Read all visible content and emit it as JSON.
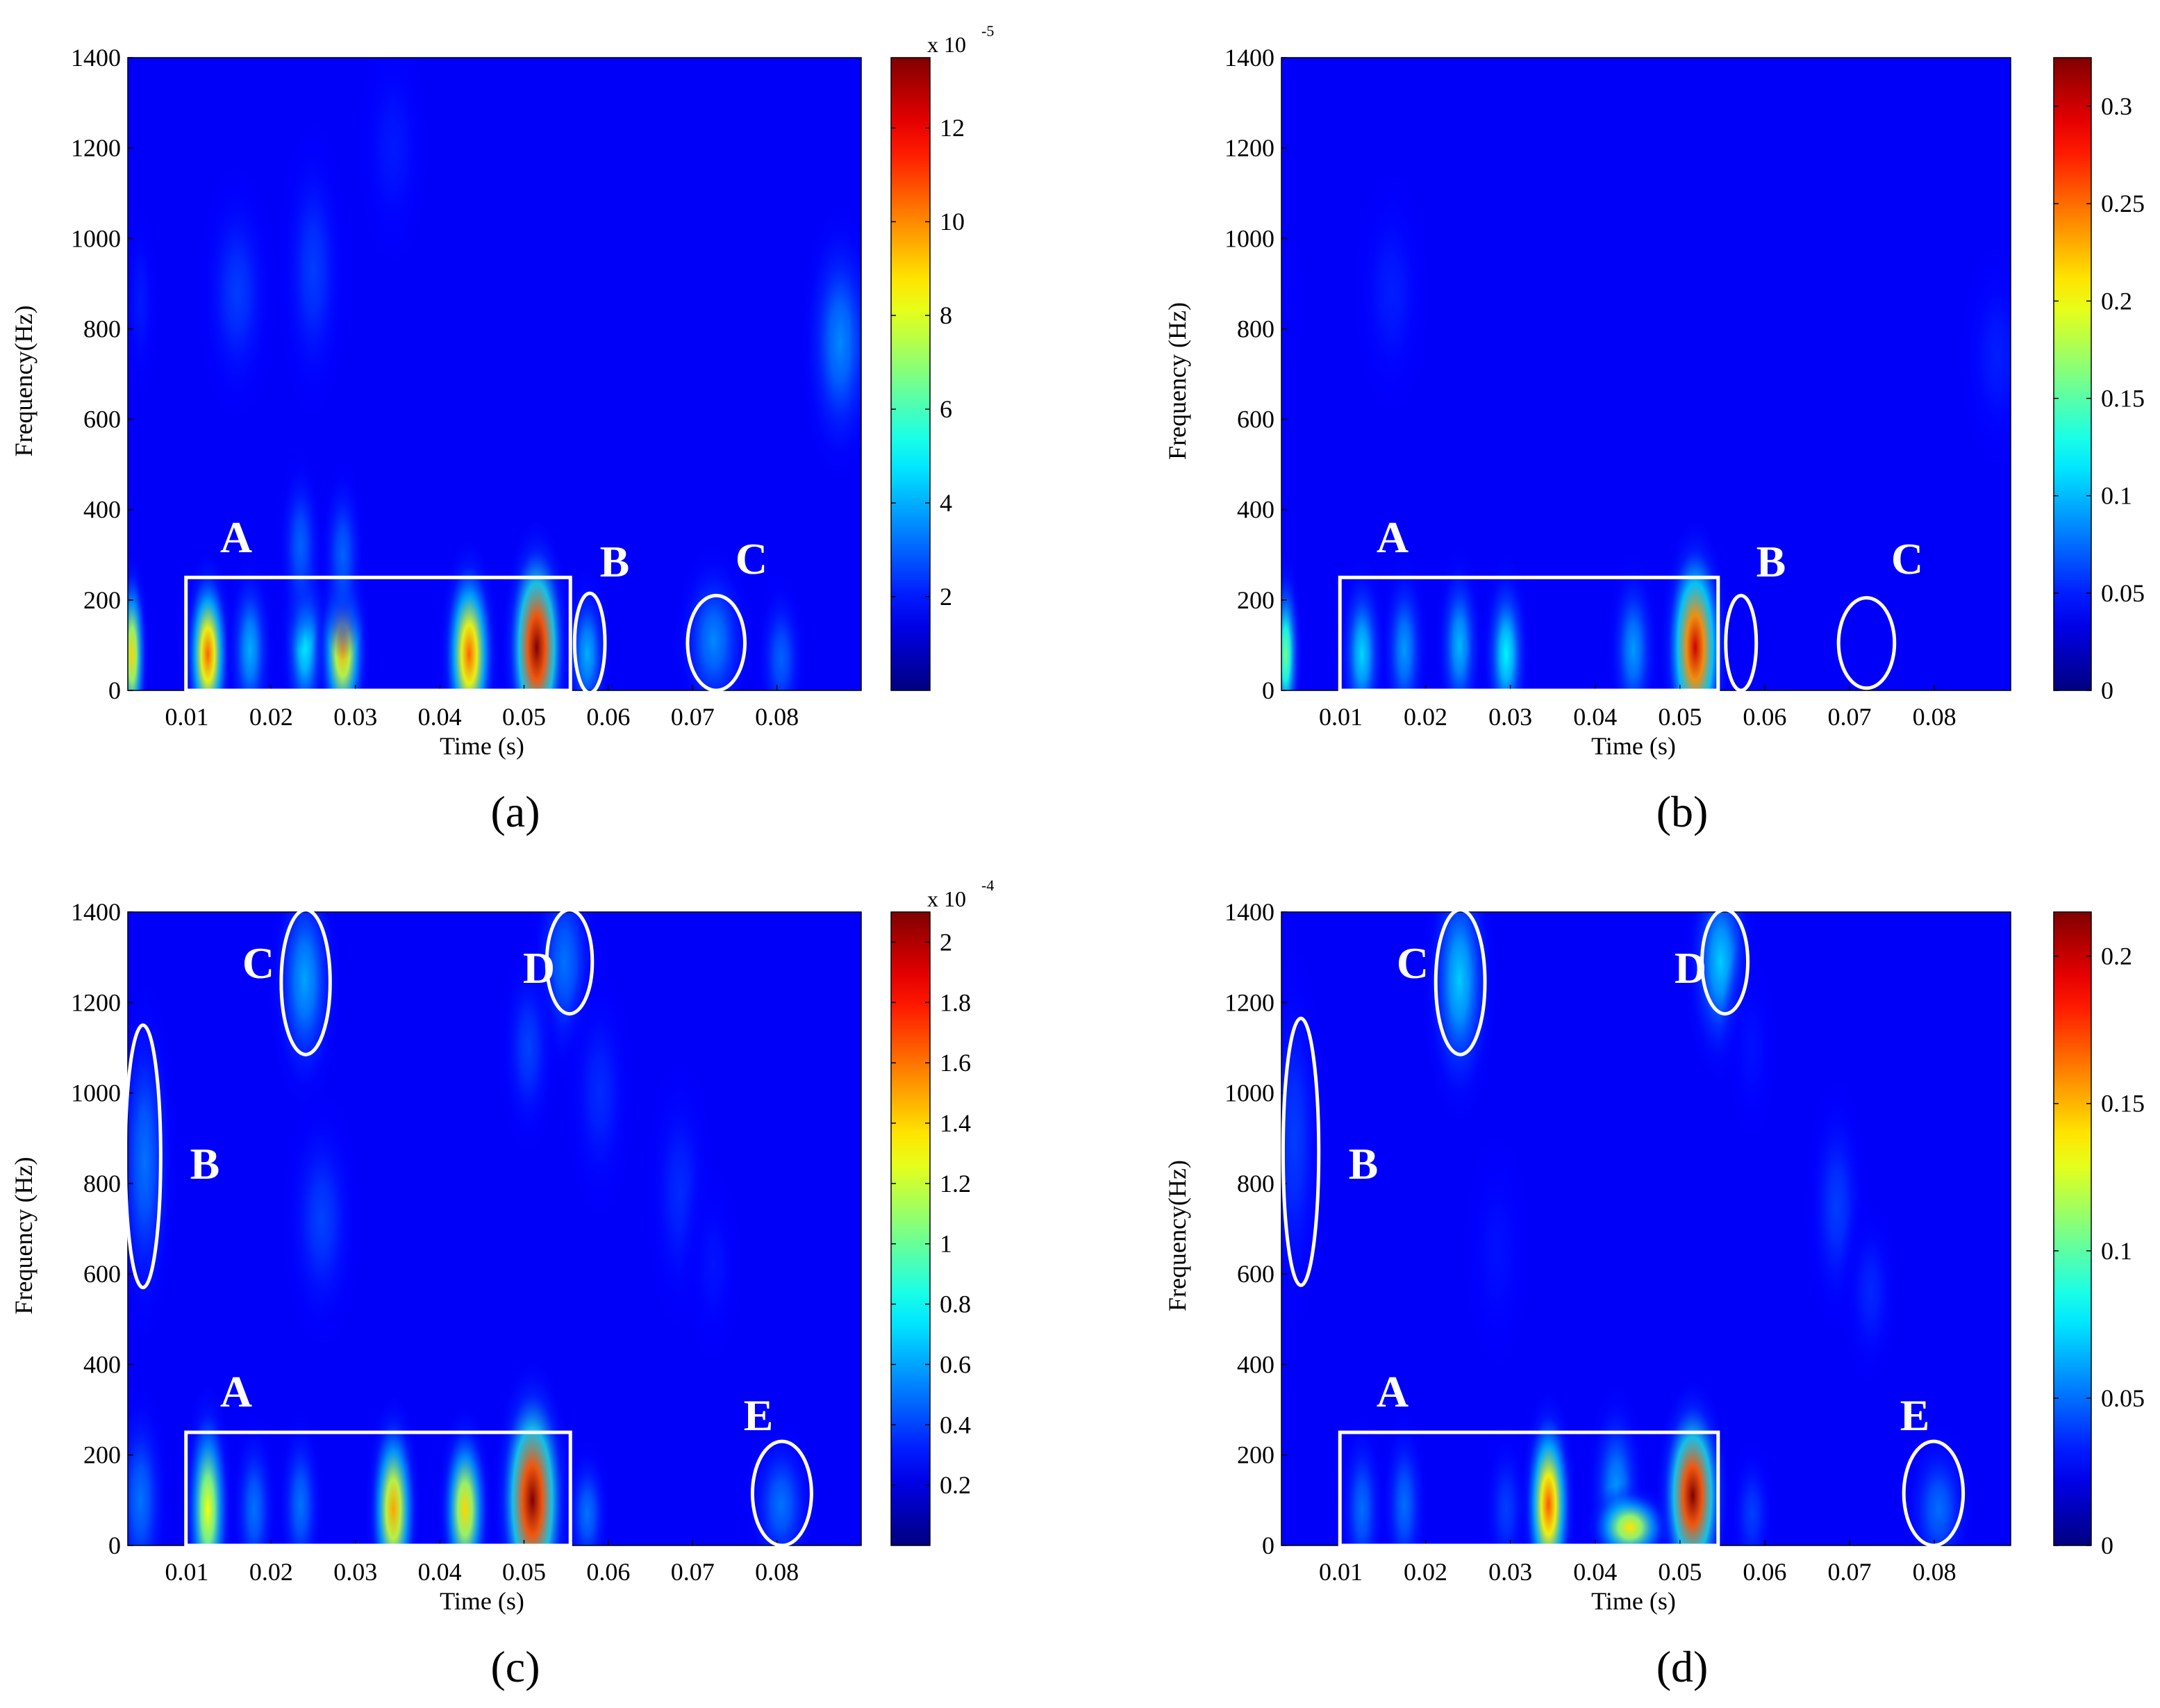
{
  "panels": [
    {
      "caption": "(a)",
      "xlabel": "Time (s)",
      "ylabel": "Frequency(Hz)",
      "xticks": [
        "0.01",
        "0.02",
        "0.03",
        "0.04",
        "0.05",
        "0.06",
        "0.07",
        "0.08"
      ],
      "yticks": [
        "0",
        "200",
        "400",
        "600",
        "800",
        "1000",
        "1200",
        "1400"
      ],
      "colorbar": {
        "multiplier": "x 10",
        "exponent": "-5",
        "ticks": [
          "2",
          "4",
          "6",
          "8",
          "10",
          "12"
        ]
      },
      "markers": [
        "A",
        "B",
        "C"
      ]
    },
    {
      "caption": "(b)",
      "xlabel": "Time (s)",
      "ylabel": "Frequency (Hz)",
      "xticks": [
        "0.01",
        "0.02",
        "0.03",
        "0.04",
        "0.05",
        "0.06",
        "0.07",
        "0.08"
      ],
      "yticks": [
        "0",
        "200",
        "400",
        "600",
        "800",
        "1000",
        "1200",
        "1400"
      ],
      "colorbar": {
        "multiplier": "",
        "exponent": "",
        "ticks": [
          "0",
          "0.05",
          "0.1",
          "0.15",
          "0.2",
          "0.25",
          "0.3"
        ]
      },
      "markers": [
        "A",
        "B",
        "C"
      ]
    },
    {
      "caption": "(c)",
      "xlabel": "Time (s)",
      "ylabel": "Frequency (Hz)",
      "xticks": [
        "0.01",
        "0.02",
        "0.03",
        "0.04",
        "0.05",
        "0.06",
        "0.07",
        "0.08"
      ],
      "yticks": [
        "0",
        "200",
        "400",
        "600",
        "800",
        "1000",
        "1200",
        "1400"
      ],
      "colorbar": {
        "multiplier": "x 10",
        "exponent": "-4",
        "ticks": [
          "0.2",
          "0.4",
          "0.6",
          "0.8",
          "1",
          "1.2",
          "1.4",
          "1.6",
          "1.8",
          "2"
        ]
      },
      "markers": [
        "A",
        "B",
        "C",
        "D",
        "E"
      ]
    },
    {
      "caption": "(d)",
      "xlabel": "Time (s)",
      "ylabel": "Frequency(Hz)",
      "xticks": [
        "0.01",
        "0.02",
        "0.03",
        "0.04",
        "0.05",
        "0.06",
        "0.07",
        "0.08"
      ],
      "yticks": [
        "0",
        "200",
        "400",
        "600",
        "800",
        "1000",
        "1200",
        "1400"
      ],
      "colorbar": {
        "multiplier": "",
        "exponent": "",
        "ticks": [
          "0",
          "0.05",
          "0.1",
          "0.15",
          "0.2"
        ]
      },
      "markers": [
        "A",
        "B",
        "C",
        "D",
        "E"
      ]
    }
  ],
  "chart_data": [
    {
      "type": "heatmap",
      "panel": "(a)",
      "xlabel": "Time (s)",
      "ylabel": "Frequency(Hz)",
      "xlim": [
        0.003,
        0.09
      ],
      "ylim": [
        0,
        1400
      ],
      "clim": [
        0,
        0.000135
      ],
      "blobs": [
        {
          "t": 0.0125,
          "f": 80,
          "st": 0.0012,
          "sf": 90,
          "v": 0.000105
        },
        {
          "t": 0.0175,
          "f": 90,
          "st": 0.0012,
          "sf": 90,
          "v": 4e-05
        },
        {
          "t": 0.024,
          "f": 110,
          "st": 0.0012,
          "sf": 100,
          "v": 5e-05
        },
        {
          "t": 0.0285,
          "f": 90,
          "st": 0.0013,
          "sf": 90,
          "v": 9.5e-05
        },
        {
          "t": 0.0435,
          "f": 80,
          "st": 0.0014,
          "sf": 100,
          "v": 0.000105
        },
        {
          "t": 0.0515,
          "f": 95,
          "st": 0.0016,
          "sf": 110,
          "v": 0.000135
        },
        {
          "t": 0.0575,
          "f": 80,
          "st": 0.0012,
          "sf": 80,
          "v": 4e-05
        },
        {
          "t": 0.0725,
          "f": 110,
          "st": 0.002,
          "sf": 90,
          "v": 3.5e-05
        },
        {
          "t": 0.0805,
          "f": 70,
          "st": 0.0013,
          "sf": 80,
          "v": 3e-05
        },
        {
          "t": 0.0035,
          "f": 80,
          "st": 0.0008,
          "sf": 90,
          "v": 9e-05
        },
        {
          "t": 0.016,
          "f": 880,
          "st": 0.002,
          "sf": 120,
          "v": 2.5e-05
        },
        {
          "t": 0.0235,
          "f": 320,
          "st": 0.0012,
          "sf": 90,
          "v": 3e-05
        },
        {
          "t": 0.0285,
          "f": 300,
          "st": 0.0012,
          "sf": 90,
          "v": 3e-05
        },
        {
          "t": 0.0345,
          "f": 1200,
          "st": 0.002,
          "sf": 120,
          "v": 2e-05
        },
        {
          "t": 0.025,
          "f": 930,
          "st": 0.0018,
          "sf": 140,
          "v": 2.5e-05
        },
        {
          "t": 0.0875,
          "f": 770,
          "st": 0.002,
          "sf": 130,
          "v": 3.5e-05
        },
        {
          "t": 0.0045,
          "f": 860,
          "st": 0.001,
          "sf": 100,
          "v": 2e-05
        }
      ],
      "annotations": [
        {
          "label": "A",
          "shape": "rect",
          "t0": 0.0099,
          "t1": 0.0555,
          "f0": 0,
          "f1": 250
        },
        {
          "label": "B",
          "shape": "ellipse",
          "t": 0.0578,
          "f": 105,
          "rt": 0.0018,
          "rf": 110
        },
        {
          "label": "C",
          "shape": "ellipse",
          "t": 0.0728,
          "f": 105,
          "rt": 0.0034,
          "rf": 105
        }
      ]
    },
    {
      "type": "heatmap",
      "panel": "(b)",
      "xlabel": "Time (s)",
      "ylabel": "Frequency (Hz)",
      "xlim": [
        0.003,
        0.089
      ],
      "ylim": [
        0,
        1400
      ],
      "clim": [
        0,
        0.325
      ],
      "blobs": [
        {
          "t": 0.0125,
          "f": 80,
          "st": 0.0012,
          "sf": 90,
          "v": 0.11
        },
        {
          "t": 0.0175,
          "f": 90,
          "st": 0.0012,
          "sf": 90,
          "v": 0.09
        },
        {
          "t": 0.024,
          "f": 100,
          "st": 0.0012,
          "sf": 90,
          "v": 0.1
        },
        {
          "t": 0.0295,
          "f": 80,
          "st": 0.0012,
          "sf": 90,
          "v": 0.12
        },
        {
          "t": 0.0445,
          "f": 90,
          "st": 0.0013,
          "sf": 90,
          "v": 0.09
        },
        {
          "t": 0.0518,
          "f": 95,
          "st": 0.0016,
          "sf": 110,
          "v": 0.3
        },
        {
          "t": 0.0578,
          "f": 60,
          "st": 0.0012,
          "sf": 70,
          "v": 0.04
        },
        {
          "t": 0.072,
          "f": 90,
          "st": 0.002,
          "sf": 80,
          "v": 0.03
        },
        {
          "t": 0.0035,
          "f": 80,
          "st": 0.0008,
          "sf": 90,
          "v": 0.16
        },
        {
          "t": 0.016,
          "f": 880,
          "st": 0.002,
          "sf": 120,
          "v": 0.05
        },
        {
          "t": 0.0345,
          "f": 1200,
          "st": 0.0015,
          "sf": 100,
          "v": 0.03
        },
        {
          "t": 0.0875,
          "f": 740,
          "st": 0.002,
          "sf": 110,
          "v": 0.05
        },
        {
          "t": 0.0045,
          "f": 860,
          "st": 0.0008,
          "sf": 100,
          "v": 0.04
        }
      ],
      "annotations": [
        {
          "label": "A",
          "shape": "rect",
          "t0": 0.0099,
          "t1": 0.0545,
          "f0": 0,
          "f1": 250
        },
        {
          "label": "B",
          "shape": "ellipse",
          "t": 0.0572,
          "f": 105,
          "rt": 0.0018,
          "rf": 105
        },
        {
          "label": "C",
          "shape": "ellipse",
          "t": 0.072,
          "f": 105,
          "rt": 0.0033,
          "rf": 100
        }
      ]
    },
    {
      "type": "heatmap",
      "panel": "(c)",
      "xlabel": "Time (s)",
      "ylabel": "Frequency (Hz)",
      "xlim": [
        0.003,
        0.09
      ],
      "ylim": [
        0,
        1400
      ],
      "clim": [
        0,
        0.00021
      ],
      "blobs": [
        {
          "t": 0.0125,
          "f": 80,
          "st": 0.0012,
          "sf": 110,
          "v": 0.00013
        },
        {
          "t": 0.018,
          "f": 80,
          "st": 0.0012,
          "sf": 90,
          "v": 5e-05
        },
        {
          "t": 0.0235,
          "f": 90,
          "st": 0.0012,
          "sf": 90,
          "v": 5e-05
        },
        {
          "t": 0.0345,
          "f": 80,
          "st": 0.0013,
          "sf": 100,
          "v": 0.00015
        },
        {
          "t": 0.043,
          "f": 80,
          "st": 0.0013,
          "sf": 90,
          "v": 0.00014
        },
        {
          "t": 0.051,
          "f": 100,
          "st": 0.0018,
          "sf": 120,
          "v": 0.00021
        },
        {
          "t": 0.0575,
          "f": 70,
          "st": 0.0012,
          "sf": 70,
          "v": 5e-05
        },
        {
          "t": 0.0805,
          "f": 90,
          "st": 0.0018,
          "sf": 80,
          "v": 5e-05
        },
        {
          "t": 0.0045,
          "f": 100,
          "st": 0.0015,
          "sf": 110,
          "v": 5e-05
        },
        {
          "t": 0.005,
          "f": 850,
          "st": 0.0016,
          "sf": 170,
          "v": 5e-05
        },
        {
          "t": 0.024,
          "f": 1250,
          "st": 0.0018,
          "sf": 120,
          "v": 6e-05
        },
        {
          "t": 0.0548,
          "f": 1290,
          "st": 0.0018,
          "sf": 110,
          "v": 5e-05
        },
        {
          "t": 0.0505,
          "f": 1100,
          "st": 0.0015,
          "sf": 100,
          "v": 4e-05
        },
        {
          "t": 0.026,
          "f": 720,
          "st": 0.002,
          "sf": 120,
          "v": 4e-05
        },
        {
          "t": 0.059,
          "f": 1000,
          "st": 0.0018,
          "sf": 120,
          "v": 3.5e-05
        },
        {
          "t": 0.0685,
          "f": 780,
          "st": 0.0018,
          "sf": 130,
          "v": 3.5e-05
        },
        {
          "t": 0.0725,
          "f": 620,
          "st": 0.0016,
          "sf": 100,
          "v": 3e-05
        }
      ],
      "annotations": [
        {
          "label": "A",
          "shape": "rect",
          "t0": 0.0099,
          "t1": 0.0555,
          "f0": 0,
          "f1": 250
        },
        {
          "label": "B",
          "shape": "ellipse",
          "t": 0.0048,
          "f": 860,
          "rt": 0.0021,
          "rf": 290
        },
        {
          "label": "C",
          "shape": "ellipse",
          "t": 0.0241,
          "f": 1245,
          "rt": 0.0029,
          "rf": 160
        },
        {
          "label": "D",
          "shape": "ellipse",
          "t": 0.0554,
          "f": 1290,
          "rt": 0.0027,
          "rf": 115
        },
        {
          "label": "E",
          "shape": "ellipse",
          "t": 0.0806,
          "f": 115,
          "rt": 0.0035,
          "rf": 115
        }
      ]
    },
    {
      "type": "heatmap",
      "panel": "(d)",
      "xlabel": "Time (s)",
      "ylabel": "Frequency(Hz)",
      "xlim": [
        0.003,
        0.089
      ],
      "ylim": [
        0,
        1400
      ],
      "clim": [
        0,
        0.215
      ],
      "blobs": [
        {
          "t": 0.0125,
          "f": 80,
          "st": 0.0012,
          "sf": 90,
          "v": 0.05
        },
        {
          "t": 0.0175,
          "f": 90,
          "st": 0.0012,
          "sf": 90,
          "v": 0.05
        },
        {
          "t": 0.0295,
          "f": 80,
          "st": 0.0012,
          "sf": 80,
          "v": 0.04
        },
        {
          "t": 0.0345,
          "f": 90,
          "st": 0.0013,
          "sf": 100,
          "v": 0.17
        },
        {
          "t": 0.0425,
          "f": 120,
          "st": 0.0015,
          "sf": 100,
          "v": 0.06
        },
        {
          "t": 0.0441,
          "f": 40,
          "st": 0.0021,
          "sf": 38,
          "v": 0.14
        },
        {
          "t": 0.0515,
          "f": 110,
          "st": 0.0017,
          "sf": 100,
          "v": 0.215
        },
        {
          "t": 0.0585,
          "f": 70,
          "st": 0.0012,
          "sf": 70,
          "v": 0.04
        },
        {
          "t": 0.0805,
          "f": 80,
          "st": 0.0018,
          "sf": 80,
          "v": 0.05
        },
        {
          "t": 0.0045,
          "f": 900,
          "st": 0.0016,
          "sf": 180,
          "v": 0.04
        },
        {
          "t": 0.024,
          "f": 1250,
          "st": 0.0018,
          "sf": 130,
          "v": 0.07
        },
        {
          "t": 0.0548,
          "f": 1290,
          "st": 0.0018,
          "sf": 110,
          "v": 0.07
        },
        {
          "t": 0.0285,
          "f": 650,
          "st": 0.002,
          "sf": 130,
          "v": 0.03
        },
        {
          "t": 0.0585,
          "f": 1100,
          "st": 0.0015,
          "sf": 100,
          "v": 0.03
        },
        {
          "t": 0.0685,
          "f": 750,
          "st": 0.0016,
          "sf": 120,
          "v": 0.04
        },
        {
          "t": 0.0725,
          "f": 560,
          "st": 0.0015,
          "sf": 90,
          "v": 0.035
        }
      ],
      "annotations": [
        {
          "label": "A",
          "shape": "rect",
          "t0": 0.0099,
          "t1": 0.0545,
          "f0": 0,
          "f1": 250
        },
        {
          "label": "B",
          "shape": "ellipse",
          "t": 0.0053,
          "f": 870,
          "rt": 0.0021,
          "rf": 295
        },
        {
          "label": "C",
          "shape": "ellipse",
          "t": 0.0241,
          "f": 1245,
          "rt": 0.0029,
          "rf": 160
        },
        {
          "label": "D",
          "shape": "ellipse",
          "t": 0.0553,
          "f": 1290,
          "rt": 0.0027,
          "rf": 115
        },
        {
          "label": "E",
          "shape": "ellipse",
          "t": 0.0799,
          "f": 115,
          "rt": 0.0035,
          "rf": 115
        }
      ]
    }
  ]
}
